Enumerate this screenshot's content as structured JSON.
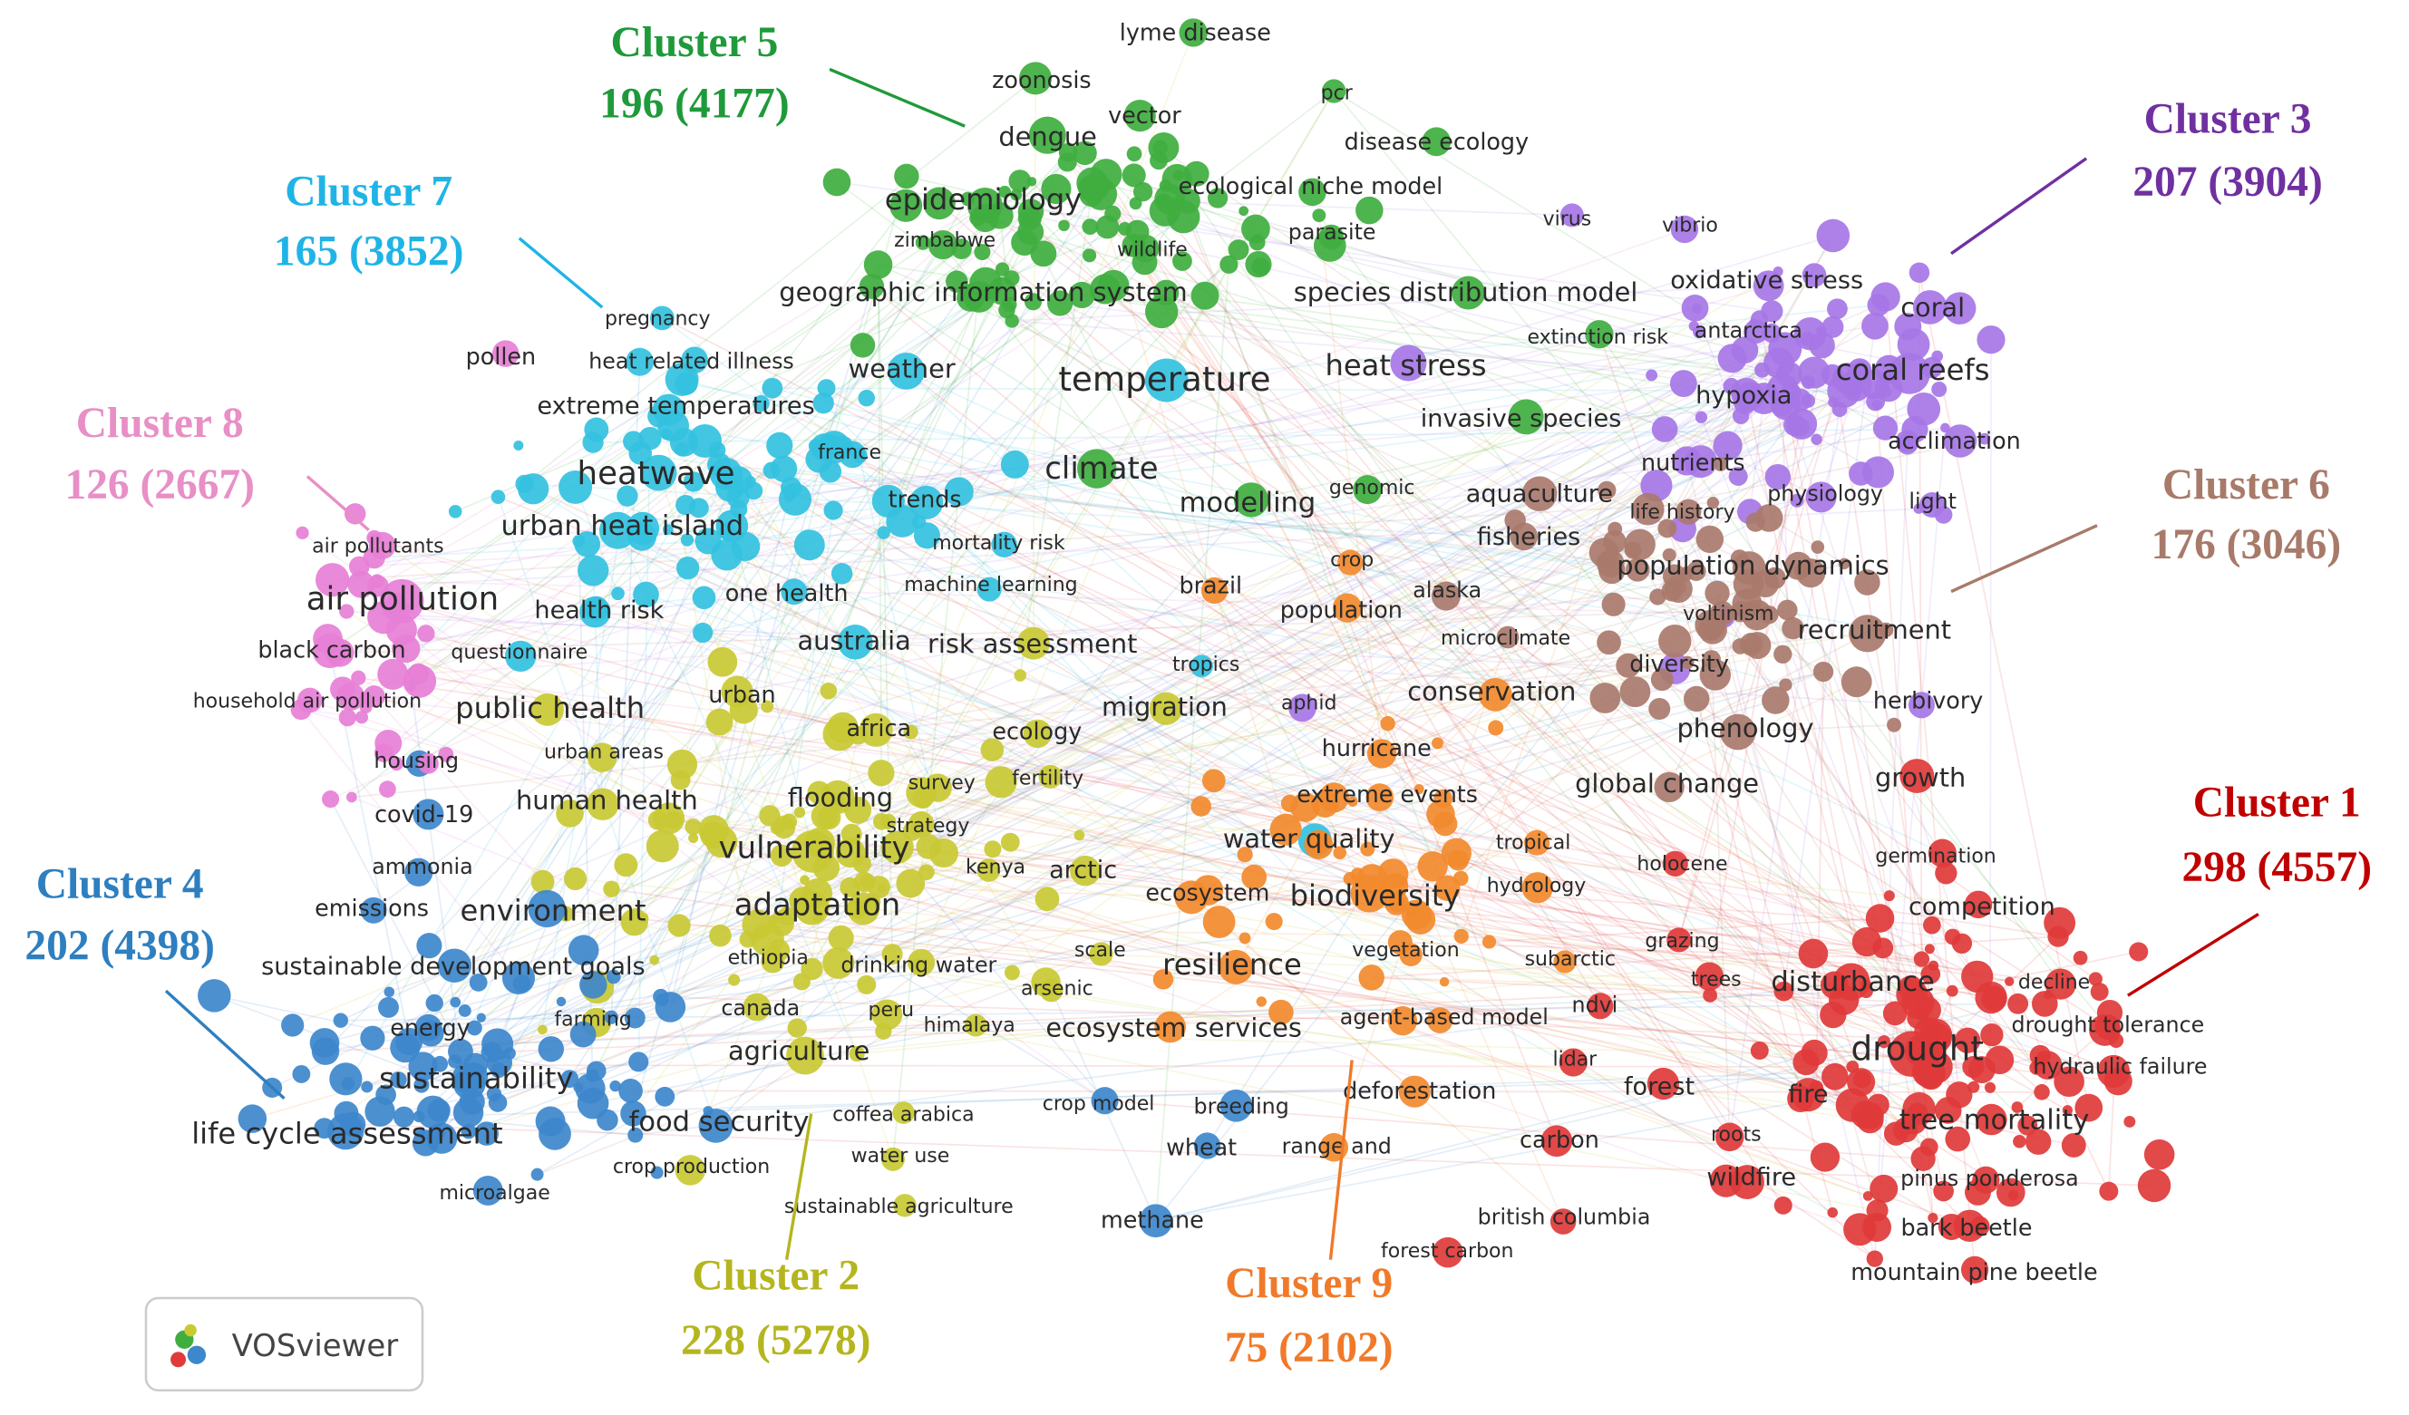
{
  "clusters": [
    {
      "name": "Cluster 1",
      "stats": "298 (4557)",
      "color": "#e03a3a",
      "label_color": "#c00000",
      "keywords": [
        "drought",
        "tree mortality",
        "disturbance",
        "competition",
        "decline",
        "drought tolerance",
        "hydraulic failure",
        "fire",
        "forest",
        "wildfire",
        "roots",
        "pinus ponderosa",
        "bark beetle",
        "mountain pine beetle",
        "carbon",
        "british columbia",
        "forest carbon",
        "ndvi",
        "lidar",
        "trees",
        "grazing",
        "holocene",
        "germination",
        "growth"
      ]
    },
    {
      "name": "Cluster 2",
      "stats": "228 (5278)",
      "color": "#c9c934",
      "label_color": "#b5b51f",
      "keywords": [
        "vulnerability",
        "adaptation",
        "flooding",
        "agriculture",
        "human health",
        "public health",
        "urban",
        "urban areas",
        "africa",
        "kenya",
        "arctic",
        "migration",
        "ecology",
        "fertility",
        "survey",
        "strategy",
        "ethiopia",
        "canada",
        "peru",
        "himalaya",
        "drinking water",
        "arsenic",
        "scale",
        "farming",
        "coffea arabica",
        "water use",
        "crop production",
        "sustainable agriculture",
        "risk assessment"
      ]
    },
    {
      "name": "Cluster 3",
      "stats": "207 (3904)",
      "color": "#a676e6",
      "label_color": "#7030a0",
      "keywords": [
        "coral",
        "coral reefs",
        "oxidative stress",
        "antarctica",
        "hypoxia",
        "nutrients",
        "acclimation",
        "physiology",
        "light",
        "vibrio",
        "virus",
        "heat stress",
        "voltinism",
        "diversity",
        "herbivory",
        "aphid"
      ]
    },
    {
      "name": "Cluster 4",
      "stats": "202 (4398)",
      "color": "#3d87cc",
      "label_color": "#2e7fc0",
      "keywords": [
        "life cycle assessment",
        "sustainability",
        "food security",
        "environment",
        "sustainable development goals",
        "energy",
        "emissions",
        "ammonia",
        "covid-19",
        "microalgae",
        "methane",
        "wheat",
        "crop model",
        "breeding",
        "housing"
      ]
    },
    {
      "name": "Cluster 5",
      "stats": "196 (4177)",
      "color": "#3fae3f",
      "label_color": "#1f9a3a",
      "keywords": [
        "lyme disease",
        "zoonosis",
        "vector",
        "dengue",
        "pcr",
        "disease ecology",
        "epidemiology",
        "ecological niche model",
        "zimbabwe",
        "wildlife",
        "parasite",
        "geographic information system",
        "species distribution model",
        "climate",
        "modelling",
        "genomic",
        "invasive species",
        "extinction risk"
      ]
    },
    {
      "name": "Cluster 6",
      "stats": "176 (3046)",
      "color": "#a97a6c",
      "label_color": "#a87a6a",
      "keywords": [
        "population dynamics",
        "recruitment",
        "phenology",
        "aquaculture",
        "fisheries",
        "life history",
        "alaska",
        "microclimate",
        "global change"
      ]
    },
    {
      "name": "Cluster 7",
      "stats": "165 (3852)",
      "color": "#33c1e0",
      "label_color": "#1fb4e6",
      "keywords": [
        "temperature",
        "weather",
        "heatwave",
        "urban heat island",
        "heat related illness",
        "pregnancy",
        "extreme temperatures",
        "france",
        "trends",
        "mortality risk",
        "machine learning",
        "one health",
        "health risk",
        "questionnaire",
        "australia",
        "tropics",
        "water quality"
      ]
    },
    {
      "name": "Cluster 8",
      "stats": "126 (2667)",
      "color": "#e67fd6",
      "label_color": "#e88fc6",
      "keywords": [
        "pollen",
        "air pollution",
        "air pollutants",
        "black carbon",
        "household air pollution"
      ]
    },
    {
      "name": "Cluster 9",
      "stats": "75 (2102)",
      "color": "#f28a2e",
      "label_color": "#f07a2a",
      "keywords": [
        "biodiversity",
        "resilience",
        "ecosystem services",
        "conservation",
        "hurricane",
        "extreme events",
        "ecosystem",
        "tropical",
        "hydrology",
        "vegetation",
        "subarctic",
        "agent-based model",
        "range and",
        "deforestation",
        "crop",
        "population",
        "brazil"
      ]
    }
  ],
  "logo": "VOSviewer"
}
